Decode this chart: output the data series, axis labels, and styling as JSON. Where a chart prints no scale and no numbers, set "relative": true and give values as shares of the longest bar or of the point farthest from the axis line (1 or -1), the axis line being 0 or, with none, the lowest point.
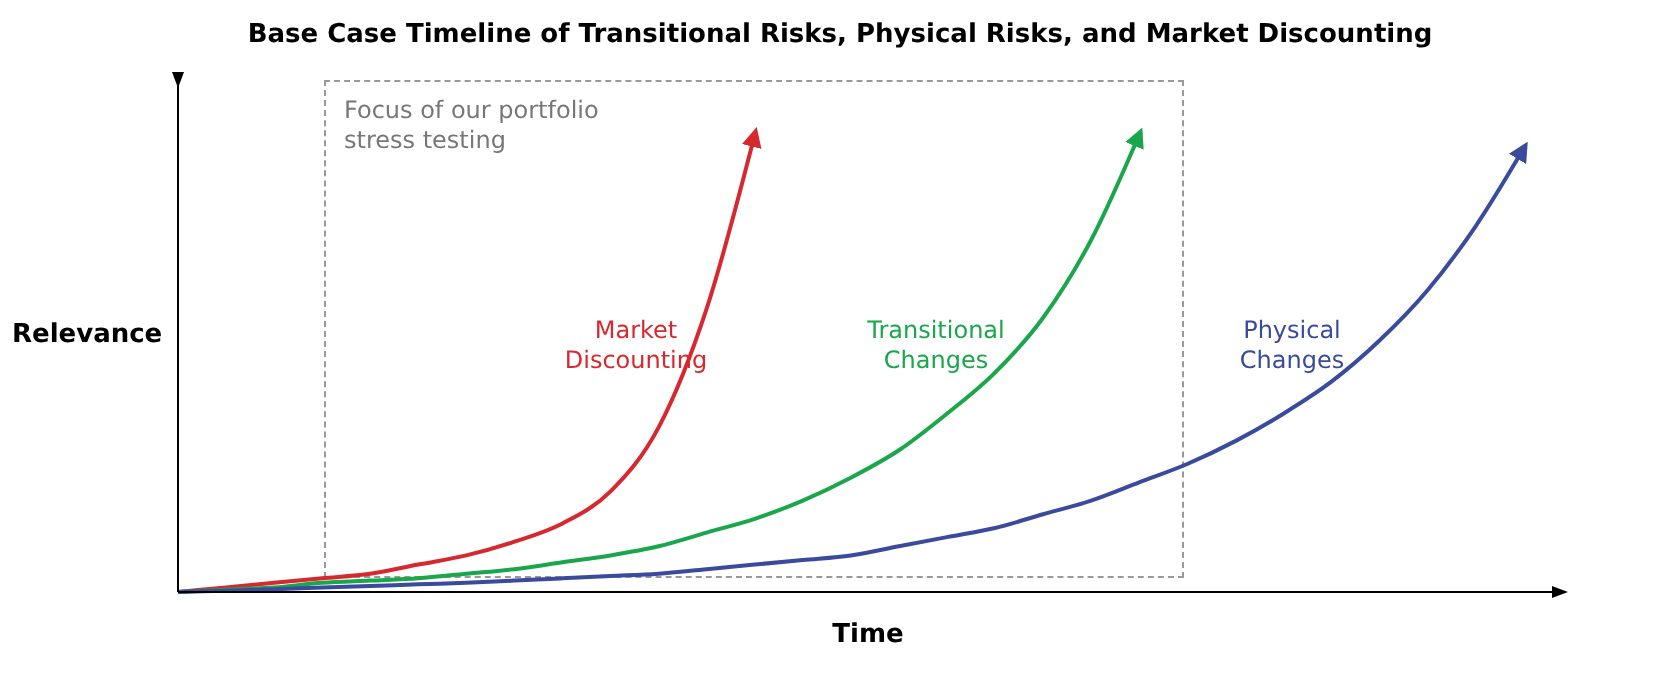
{
  "chart_data": {
    "type": "line",
    "title": "Base Case Timeline of Transitional Risks, Physical Risks, and Market Discounting",
    "xlabel": "Time",
    "ylabel": "Relevance",
    "relative": true,
    "legend": false,
    "grid": false,
    "marker": "none",
    "line_style": "solid",
    "annotations": [
      "Focus of our portfolio stress testing"
    ],
    "categories": [
      null,
      null,
      null,
      null,
      null,
      null,
      null,
      null,
      null,
      null,
      null,
      null,
      null,
      null,
      null,
      null,
      null,
      null,
      null,
      null,
      null,
      null,
      null,
      null,
      null,
      null,
      null,
      null,
      null
    ],
    "series": [
      {
        "name": "Market Discounting",
        "color": "#d7282f",
        "values": [
          0,
          0.01,
          0.02,
          0.03,
          0.04,
          0.06,
          0.08,
          0.11,
          0.15,
          0.22,
          0.36,
          0.62,
          1,
          null,
          null,
          null,
          null,
          null,
          null,
          null,
          null,
          null,
          null,
          null,
          null,
          null,
          null,
          null,
          null
        ]
      },
      {
        "name": "Transitional Changes",
        "color": "#1aa64a",
        "values": [
          0,
          0.005,
          0.01,
          0.02,
          0.025,
          0.03,
          0.04,
          0.05,
          0.065,
          0.08,
          0.1,
          0.13,
          0.16,
          0.2,
          0.25,
          0.31,
          0.39,
          0.48,
          0.6,
          0.77,
          1,
          null,
          null,
          null,
          null,
          null,
          null,
          null,
          null
        ]
      },
      {
        "name": "Physical Changes",
        "color": "#3a4a9c",
        "values": [
          0,
          0.003,
          0.006,
          0.01,
          0.013,
          0.017,
          0.02,
          0.025,
          0.03,
          0.035,
          0.04,
          0.05,
          0.06,
          0.07,
          0.08,
          0.1,
          0.12,
          0.14,
          0.17,
          0.2,
          0.24,
          0.28,
          0.33,
          0.39,
          0.46,
          0.55,
          0.66,
          0.8,
          0.97
        ]
      }
    ]
  }
}
